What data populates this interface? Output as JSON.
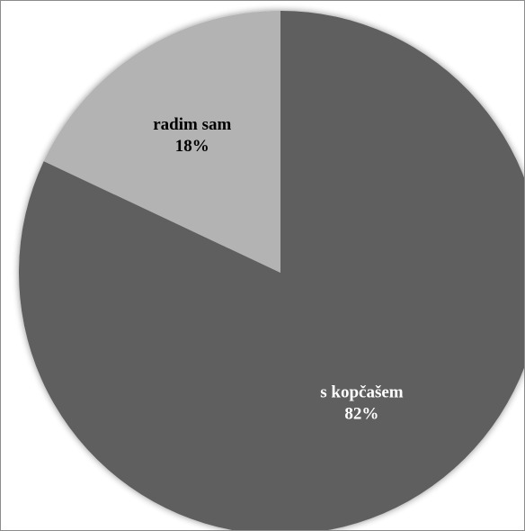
{
  "chart_data": {
    "type": "pie",
    "title": "",
    "start_angle_deg": 0,
    "direction": "clockwise",
    "slices": [
      {
        "label": "s kopčašem",
        "value": 82,
        "value_label": "82%",
        "color": "#5f5f5f",
        "label_color": "#ffffff"
      },
      {
        "label": "radim sam",
        "value": 18,
        "value_label": "18%",
        "color": "#b3b3b3",
        "label_color": "#000000"
      }
    ]
  }
}
